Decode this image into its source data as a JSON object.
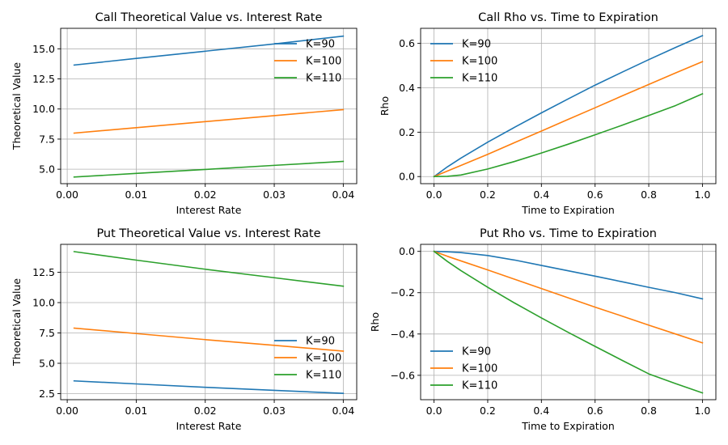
{
  "colors": {
    "K=90": "#1f77b4",
    "K=100": "#ff7f0e",
    "K=110": "#2ca02c"
  },
  "chart_data": [
    {
      "type": "line",
      "title": "Call Theoretical Value vs. Interest Rate",
      "xlabel": "Interest Rate",
      "ylabel": "Theoretical Value",
      "x": [
        0.001,
        0.01,
        0.02,
        0.03,
        0.04
      ],
      "xlim": [
        -0.00095,
        0.04195
      ],
      "ylim": [
        3.8,
        16.7
      ],
      "xticks": [
        0.0,
        0.01,
        0.02,
        0.03,
        0.04
      ],
      "xtick_labels": [
        "0.00",
        "0.01",
        "0.02",
        "0.03",
        "0.04"
      ],
      "yticks": [
        5.0,
        7.5,
        10.0,
        12.5,
        15.0
      ],
      "ytick_labels": [
        "5.0",
        "7.5",
        "10.0",
        "12.5",
        "15.0"
      ],
      "grid": true,
      "legend_position": "upper-right",
      "series": [
        {
          "name": "K=90",
          "values": [
            13.65,
            14.2,
            14.8,
            15.4,
            16.05
          ]
        },
        {
          "name": "K=100",
          "values": [
            8.0,
            8.45,
            8.95,
            9.45,
            9.95
          ]
        },
        {
          "name": "K=110",
          "values": [
            4.35,
            4.65,
            4.98,
            5.32,
            5.65
          ]
        }
      ]
    },
    {
      "type": "line",
      "title": "Call Rho vs. Time to Expiration",
      "xlabel": "Time to Expiration",
      "ylabel": "Rho",
      "x": [
        0.0,
        0.05,
        0.1,
        0.2,
        0.3,
        0.4,
        0.5,
        0.6,
        0.7,
        0.8,
        0.9,
        1.0
      ],
      "xlim": [
        -0.05,
        1.05
      ],
      "ylim": [
        -0.032,
        0.668
      ],
      "xticks": [
        0.0,
        0.2,
        0.4,
        0.6,
        0.8,
        1.0
      ],
      "xtick_labels": [
        "0.0",
        "0.2",
        "0.4",
        "0.6",
        "0.8",
        "1.0"
      ],
      "yticks": [
        0.0,
        0.2,
        0.4,
        0.6
      ],
      "ytick_labels": [
        "0.0",
        "0.2",
        "0.4",
        "0.6"
      ],
      "grid": true,
      "legend_position": "upper-left",
      "series": [
        {
          "name": "K=90",
          "values": [
            0.0,
            0.044,
            0.083,
            0.155,
            0.222,
            0.287,
            0.35,
            0.412,
            0.47,
            0.527,
            0.582,
            0.635
          ]
        },
        {
          "name": "K=100",
          "values": [
            0.0,
            0.025,
            0.05,
            0.1,
            0.153,
            0.205,
            0.258,
            0.31,
            0.363,
            0.415,
            0.467,
            0.518
          ]
        },
        {
          "name": "K=110",
          "values": [
            0.0,
            0.001,
            0.007,
            0.034,
            0.068,
            0.106,
            0.146,
            0.188,
            0.231,
            0.275,
            0.32,
            0.373
          ]
        }
      ]
    },
    {
      "type": "line",
      "title": "Put Theoretical Value vs. Interest Rate",
      "xlabel": "Interest Rate",
      "ylabel": "Theoretical Value",
      "x": [
        0.001,
        0.01,
        0.02,
        0.03,
        0.04
      ],
      "xlim": [
        -0.00095,
        0.04195
      ],
      "ylim": [
        2.0,
        14.8
      ],
      "xticks": [
        0.0,
        0.01,
        0.02,
        0.03,
        0.04
      ],
      "xtick_labels": [
        "0.00",
        "0.01",
        "0.02",
        "0.03",
        "0.04"
      ],
      "yticks": [
        2.5,
        5.0,
        7.5,
        10.0,
        12.5
      ],
      "ytick_labels": [
        "2.5",
        "5.0",
        "7.5",
        "10.0",
        "12.5"
      ],
      "grid": true,
      "legend_position": "center-right",
      "series": [
        {
          "name": "K=90",
          "values": [
            3.55,
            3.3,
            3.02,
            2.77,
            2.52
          ]
        },
        {
          "name": "K=100",
          "values": [
            7.9,
            7.45,
            6.95,
            6.48,
            6.0
          ]
        },
        {
          "name": "K=110",
          "values": [
            14.2,
            13.5,
            12.75,
            12.05,
            11.35
          ]
        }
      ]
    },
    {
      "type": "line",
      "title": "Put Rho vs. Time to Expiration",
      "xlabel": "Time to Expiration",
      "ylabel": "Rho",
      "x": [
        0.0,
        0.05,
        0.1,
        0.2,
        0.3,
        0.4,
        0.5,
        0.6,
        0.7,
        0.8,
        0.9,
        1.0
      ],
      "xlim": [
        -0.05,
        1.05
      ],
      "ylim": [
        -0.718,
        0.034
      ],
      "xticks": [
        0.0,
        0.2,
        0.4,
        0.6,
        0.8,
        1.0
      ],
      "xtick_labels": [
        "0.0",
        "0.2",
        "0.4",
        "0.6",
        "0.8",
        "1.0"
      ],
      "yticks": [
        0.0,
        -0.2,
        -0.4,
        -0.6
      ],
      "ytick_labels": [
        "0.0",
        "−0.2",
        "−0.4",
        "−0.6"
      ],
      "grid": true,
      "legend_position": "lower-left",
      "series": [
        {
          "name": "K=90",
          "values": [
            0.0,
            -0.002,
            -0.006,
            -0.02,
            -0.042,
            -0.068,
            -0.094,
            -0.12,
            -0.147,
            -0.174,
            -0.2,
            -0.23
          ]
        },
        {
          "name": "K=100",
          "values": [
            0.0,
            -0.024,
            -0.046,
            -0.09,
            -0.135,
            -0.18,
            -0.225,
            -0.27,
            -0.313,
            -0.357,
            -0.4,
            -0.443
          ]
        },
        {
          "name": "K=110",
          "values": [
            0.0,
            -0.049,
            -0.093,
            -0.174,
            -0.25,
            -0.322,
            -0.392,
            -0.46,
            -0.527,
            -0.593,
            -0.64,
            -0.685
          ]
        }
      ]
    }
  ]
}
